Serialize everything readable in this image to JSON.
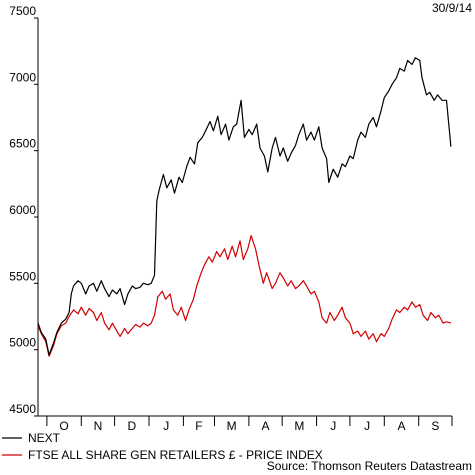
{
  "chart_data": {
    "type": "line",
    "date_label": "30/9/14",
    "source": "Source: Thomson Reuters Datastream",
    "ylim": [
      4500,
      7500
    ],
    "y_ticks": [
      4500,
      5000,
      5500,
      6000,
      6500,
      7000,
      7500
    ],
    "x_ticks": [
      "O",
      "N",
      "D",
      "J",
      "F",
      "M",
      "A",
      "M",
      "J",
      "J",
      "A",
      "S"
    ],
    "x_domain": [
      "2013-09-23",
      "2014-10-01"
    ],
    "grid": false,
    "legend_position": "bottom-left",
    "series": [
      {
        "name": "NEXT",
        "color": "#000000",
        "points": [
          [
            "2013-09-23",
            5200
          ],
          [
            "2013-09-26",
            5130
          ],
          [
            "2013-09-30",
            5080
          ],
          [
            "2013-10-03",
            4960
          ],
          [
            "2013-10-07",
            5050
          ],
          [
            "2013-10-10",
            5130
          ],
          [
            "2013-10-14",
            5200
          ],
          [
            "2013-10-18",
            5230
          ],
          [
            "2013-10-21",
            5280
          ],
          [
            "2013-10-23",
            5420
          ],
          [
            "2013-10-25",
            5480
          ],
          [
            "2013-10-29",
            5520
          ],
          [
            "2013-11-01",
            5500
          ],
          [
            "2013-11-05",
            5420
          ],
          [
            "2013-11-08",
            5480
          ],
          [
            "2013-11-12",
            5500
          ],
          [
            "2013-11-15",
            5440
          ],
          [
            "2013-11-19",
            5520
          ],
          [
            "2013-11-22",
            5460
          ],
          [
            "2013-11-26",
            5400
          ],
          [
            "2013-11-29",
            5450
          ],
          [
            "2013-12-03",
            5420
          ],
          [
            "2013-12-06",
            5460
          ],
          [
            "2013-12-10",
            5340
          ],
          [
            "2013-12-13",
            5420
          ],
          [
            "2013-12-17",
            5480
          ],
          [
            "2013-12-20",
            5460
          ],
          [
            "2013-12-24",
            5470
          ],
          [
            "2013-12-27",
            5500
          ],
          [
            "2013-12-31",
            5490
          ],
          [
            "2014-01-03",
            5500
          ],
          [
            "2014-01-06",
            5560
          ],
          [
            "2014-01-08",
            6120
          ],
          [
            "2014-01-10",
            6200
          ],
          [
            "2014-01-14",
            6320
          ],
          [
            "2014-01-17",
            6220
          ],
          [
            "2014-01-21",
            6280
          ],
          [
            "2014-01-24",
            6180
          ],
          [
            "2014-01-28",
            6300
          ],
          [
            "2014-01-31",
            6260
          ],
          [
            "2014-02-04",
            6380
          ],
          [
            "2014-02-07",
            6450
          ],
          [
            "2014-02-11",
            6400
          ],
          [
            "2014-02-14",
            6560
          ],
          [
            "2014-02-18",
            6600
          ],
          [
            "2014-02-21",
            6650
          ],
          [
            "2014-02-25",
            6720
          ],
          [
            "2014-02-28",
            6650
          ],
          [
            "2014-03-04",
            6760
          ],
          [
            "2014-03-07",
            6620
          ],
          [
            "2014-03-11",
            6700
          ],
          [
            "2014-03-14",
            6580
          ],
          [
            "2014-03-18",
            6680
          ],
          [
            "2014-03-21",
            6700
          ],
          [
            "2014-03-25",
            6880
          ],
          [
            "2014-03-28",
            6600
          ],
          [
            "2014-04-01",
            6660
          ],
          [
            "2014-04-04",
            6620
          ],
          [
            "2014-04-08",
            6700
          ],
          [
            "2014-04-11",
            6520
          ],
          [
            "2014-04-15",
            6460
          ],
          [
            "2014-04-18",
            6340
          ],
          [
            "2014-04-22",
            6520
          ],
          [
            "2014-04-25",
            6600
          ],
          [
            "2014-04-29",
            6460
          ],
          [
            "2014-05-02",
            6520
          ],
          [
            "2014-05-06",
            6420
          ],
          [
            "2014-05-09",
            6480
          ],
          [
            "2014-05-13",
            6540
          ],
          [
            "2014-05-16",
            6620
          ],
          [
            "2014-05-20",
            6700
          ],
          [
            "2014-05-23",
            6580
          ],
          [
            "2014-05-27",
            6640
          ],
          [
            "2014-05-30",
            6580
          ],
          [
            "2014-06-03",
            6680
          ],
          [
            "2014-06-06",
            6520
          ],
          [
            "2014-06-10",
            6440
          ],
          [
            "2014-06-12",
            6260
          ],
          [
            "2014-06-16",
            6360
          ],
          [
            "2014-06-20",
            6300
          ],
          [
            "2014-06-24",
            6400
          ],
          [
            "2014-06-27",
            6380
          ],
          [
            "2014-07-01",
            6460
          ],
          [
            "2014-07-04",
            6440
          ],
          [
            "2014-07-08",
            6580
          ],
          [
            "2014-07-11",
            6640
          ],
          [
            "2014-07-15",
            6600
          ],
          [
            "2014-07-18",
            6700
          ],
          [
            "2014-07-22",
            6750
          ],
          [
            "2014-07-25",
            6680
          ],
          [
            "2014-07-29",
            6800
          ],
          [
            "2014-08-01",
            6900
          ],
          [
            "2014-08-05",
            6950
          ],
          [
            "2014-08-08",
            7000
          ],
          [
            "2014-08-12",
            7050
          ],
          [
            "2014-08-15",
            7120
          ],
          [
            "2014-08-19",
            7100
          ],
          [
            "2014-08-22",
            7180
          ],
          [
            "2014-08-26",
            7150
          ],
          [
            "2014-08-29",
            7200
          ],
          [
            "2014-09-02",
            7180
          ],
          [
            "2014-09-04",
            7050
          ],
          [
            "2014-09-08",
            6920
          ],
          [
            "2014-09-11",
            6940
          ],
          [
            "2014-09-15",
            6880
          ],
          [
            "2014-09-18",
            6920
          ],
          [
            "2014-09-22",
            6880
          ],
          [
            "2014-09-26",
            6880
          ],
          [
            "2014-09-30",
            6530
          ]
        ]
      },
      {
        "name": "FTSE ALL SHARE GEN RETAILERS £ - PRICE INDEX",
        "color": "#d20000",
        "points": [
          [
            "2013-09-23",
            5180
          ],
          [
            "2013-09-26",
            5120
          ],
          [
            "2013-09-30",
            5060
          ],
          [
            "2013-10-03",
            4950
          ],
          [
            "2013-10-07",
            5030
          ],
          [
            "2013-10-10",
            5120
          ],
          [
            "2013-10-14",
            5180
          ],
          [
            "2013-10-18",
            5200
          ],
          [
            "2013-10-21",
            5250
          ],
          [
            "2013-10-25",
            5300
          ],
          [
            "2013-10-29",
            5270
          ],
          [
            "2013-11-01",
            5320
          ],
          [
            "2013-11-05",
            5260
          ],
          [
            "2013-11-08",
            5310
          ],
          [
            "2013-11-12",
            5280
          ],
          [
            "2013-11-15",
            5220
          ],
          [
            "2013-11-19",
            5280
          ],
          [
            "2013-11-22",
            5200
          ],
          [
            "2013-11-26",
            5150
          ],
          [
            "2013-11-29",
            5200
          ],
          [
            "2013-12-03",
            5140
          ],
          [
            "2013-12-06",
            5100
          ],
          [
            "2013-12-10",
            5160
          ],
          [
            "2013-12-13",
            5120
          ],
          [
            "2013-12-17",
            5160
          ],
          [
            "2013-12-20",
            5190
          ],
          [
            "2013-12-24",
            5170
          ],
          [
            "2013-12-27",
            5200
          ],
          [
            "2013-12-31",
            5180
          ],
          [
            "2014-01-03",
            5200
          ],
          [
            "2014-01-06",
            5260
          ],
          [
            "2014-01-09",
            5400
          ],
          [
            "2014-01-13",
            5440
          ],
          [
            "2014-01-16",
            5380
          ],
          [
            "2014-01-20",
            5420
          ],
          [
            "2014-01-23",
            5300
          ],
          [
            "2014-01-27",
            5260
          ],
          [
            "2014-01-30",
            5320
          ],
          [
            "2014-02-03",
            5220
          ],
          [
            "2014-02-06",
            5300
          ],
          [
            "2014-02-10",
            5380
          ],
          [
            "2014-02-13",
            5480
          ],
          [
            "2014-02-17",
            5580
          ],
          [
            "2014-02-20",
            5640
          ],
          [
            "2014-02-24",
            5700
          ],
          [
            "2014-02-27",
            5660
          ],
          [
            "2014-03-03",
            5740
          ],
          [
            "2014-03-06",
            5700
          ],
          [
            "2014-03-10",
            5760
          ],
          [
            "2014-03-13",
            5680
          ],
          [
            "2014-03-17",
            5780
          ],
          [
            "2014-03-20",
            5700
          ],
          [
            "2014-03-24",
            5820
          ],
          [
            "2014-03-27",
            5680
          ],
          [
            "2014-03-31",
            5760
          ],
          [
            "2014-04-03",
            5860
          ],
          [
            "2014-04-07",
            5760
          ],
          [
            "2014-04-10",
            5640
          ],
          [
            "2014-04-14",
            5500
          ],
          [
            "2014-04-17",
            5580
          ],
          [
            "2014-04-22",
            5460
          ],
          [
            "2014-04-25",
            5500
          ],
          [
            "2014-04-29",
            5580
          ],
          [
            "2014-05-02",
            5540
          ],
          [
            "2014-05-06",
            5480
          ],
          [
            "2014-05-09",
            5520
          ],
          [
            "2014-05-13",
            5460
          ],
          [
            "2014-05-16",
            5480
          ],
          [
            "2014-05-20",
            5520
          ],
          [
            "2014-05-23",
            5480
          ],
          [
            "2014-05-27",
            5420
          ],
          [
            "2014-05-30",
            5440
          ],
          [
            "2014-06-03",
            5360
          ],
          [
            "2014-06-06",
            5240
          ],
          [
            "2014-06-10",
            5200
          ],
          [
            "2014-06-13",
            5280
          ],
          [
            "2014-06-17",
            5220
          ],
          [
            "2014-06-20",
            5260
          ],
          [
            "2014-06-24",
            5320
          ],
          [
            "2014-06-27",
            5240
          ],
          [
            "2014-07-01",
            5200
          ],
          [
            "2014-07-04",
            5120
          ],
          [
            "2014-07-08",
            5140
          ],
          [
            "2014-07-11",
            5100
          ],
          [
            "2014-07-15",
            5140
          ],
          [
            "2014-07-18",
            5080
          ],
          [
            "2014-07-22",
            5120
          ],
          [
            "2014-07-25",
            5060
          ],
          [
            "2014-07-29",
            5120
          ],
          [
            "2014-08-01",
            5100
          ],
          [
            "2014-08-05",
            5160
          ],
          [
            "2014-08-08",
            5230
          ],
          [
            "2014-08-12",
            5300
          ],
          [
            "2014-08-15",
            5280
          ],
          [
            "2014-08-19",
            5320
          ],
          [
            "2014-08-22",
            5300
          ],
          [
            "2014-08-26",
            5360
          ],
          [
            "2014-08-29",
            5320
          ],
          [
            "2014-09-02",
            5340
          ],
          [
            "2014-09-05",
            5260
          ],
          [
            "2014-09-09",
            5220
          ],
          [
            "2014-09-12",
            5280
          ],
          [
            "2014-09-16",
            5240
          ],
          [
            "2014-09-19",
            5260
          ],
          [
            "2014-09-23",
            5200
          ],
          [
            "2014-09-26",
            5210
          ],
          [
            "2014-09-30",
            5200
          ]
        ]
      }
    ]
  }
}
